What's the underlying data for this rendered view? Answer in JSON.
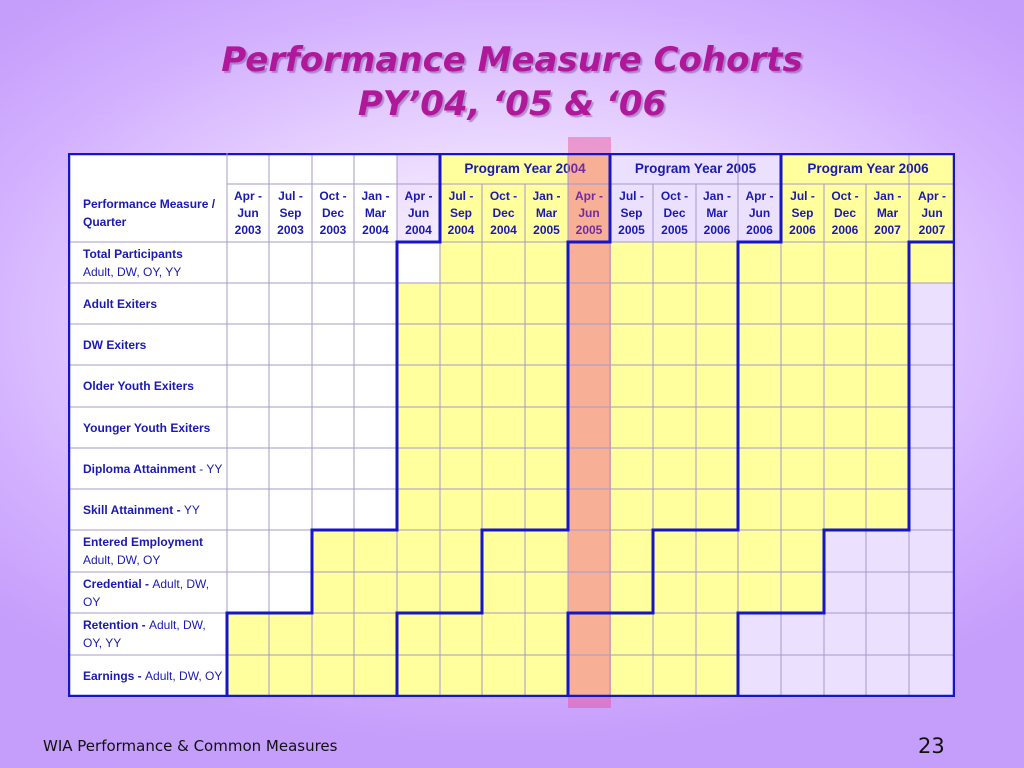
{
  "title_line1": "Performance Measure Cohorts",
  "title_line2": "PY’04, ‘05 & ‘06",
  "corner_label": "Performance Measure / Quarter",
  "program_years": [
    "Program Year 2004",
    "Program Year 2005",
    "Program Year 2006"
  ],
  "quarters": [
    [
      "Apr -",
      "Jun",
      "2003"
    ],
    [
      "Jul -",
      "Sep",
      "2003"
    ],
    [
      "Oct -",
      "Dec",
      "2003"
    ],
    [
      "Jan -",
      "Mar",
      "2004"
    ],
    [
      "Apr -",
      "Jun",
      "2004"
    ],
    [
      "Jul -",
      "Sep",
      "2004"
    ],
    [
      "Oct -",
      "Dec",
      "2004"
    ],
    [
      "Jan -",
      "Mar",
      "2005"
    ],
    [
      "Apr -",
      "Jun",
      "2005"
    ],
    [
      "Jul -",
      "Sep",
      "2005"
    ],
    [
      "Oct -",
      "Dec",
      "2005"
    ],
    [
      "Jan -",
      "Mar",
      "2006"
    ],
    [
      "Apr -",
      "Jun",
      "2006"
    ],
    [
      "Jul -",
      "Sep",
      "2006"
    ],
    [
      "Oct -",
      "Dec",
      "2006"
    ],
    [
      "Jan -",
      "Mar",
      "2007"
    ],
    [
      "Apr -",
      "Jun",
      "2007"
    ]
  ],
  "rows": [
    {
      "bold": "Total Participants",
      "normal": "Adult, DW, OY, YY",
      "break": true,
      "yellow_from": 5,
      "yellow_to": 16
    },
    {
      "bold": "Adult Exiters",
      "normal": "",
      "break": false,
      "yellow_from": 4,
      "yellow_to": 15
    },
    {
      "bold": "DW Exiters",
      "normal": "",
      "break": false,
      "yellow_from": 4,
      "yellow_to": 15
    },
    {
      "bold": "Older Youth Exiters",
      "normal": "",
      "break": false,
      "yellow_from": 4,
      "yellow_to": 15
    },
    {
      "bold": "Younger Youth Exiters",
      "normal": "",
      "break": false,
      "yellow_from": 4,
      "yellow_to": 15
    },
    {
      "bold": "Diploma Attainment",
      "normal": " - YY",
      "break": false,
      "yellow_from": 4,
      "yellow_to": 15
    },
    {
      "bold": "Skill Attainment - ",
      "normal": "YY",
      "break": false,
      "yellow_from": 4,
      "yellow_to": 15
    },
    {
      "bold": "Entered Employment",
      "normal": "Adult, DW, OY",
      "break": true,
      "yellow_from": 2,
      "yellow_to": 13
    },
    {
      "bold": "Credential - ",
      "normal": "Adult, DW, OY",
      "break": false,
      "yellow_from": 2,
      "yellow_to": 13
    },
    {
      "bold": "Retention - ",
      "normal": "Adult, DW, OY, YY",
      "break": false,
      "yellow_from": 0,
      "yellow_to": 11
    },
    {
      "bold": "Earnings - ",
      "normal": "Adult, DW, OY",
      "break": false,
      "yellow_from": 0,
      "yellow_to": 11
    }
  ],
  "colors": {
    "yellow": "#ffff9e",
    "lavender": "#ece0ff",
    "white": "#ffffff",
    "grid_line": "#a59ac8",
    "blue_line": "#1616c8",
    "text": "#1a1ab0"
  },
  "footer_left": "WIA Performance & Common Measures",
  "page_number": "23"
}
